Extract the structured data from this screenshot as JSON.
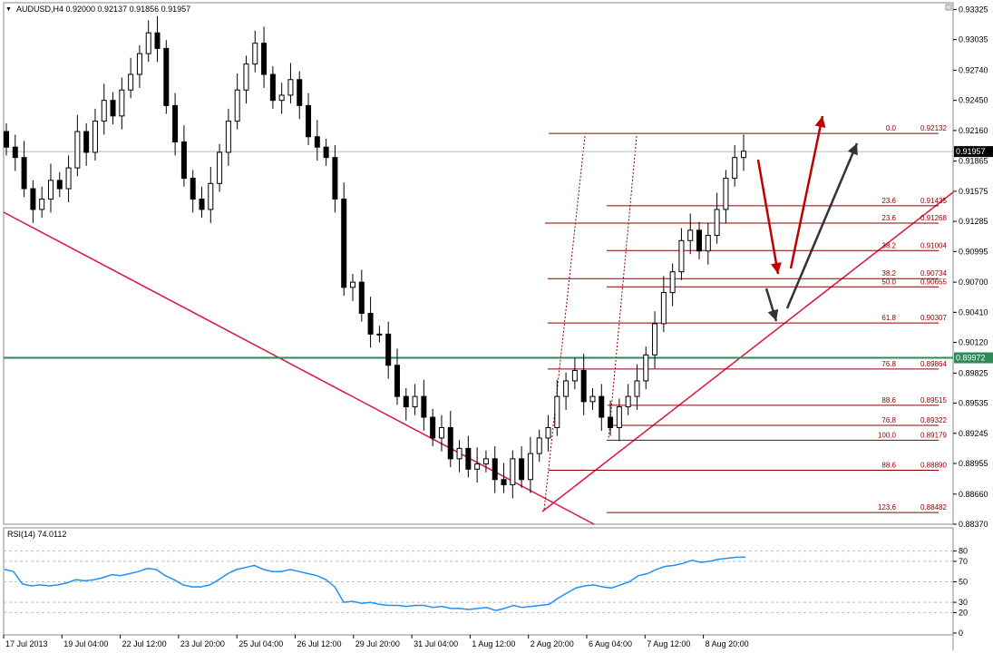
{
  "header": {
    "symbol_line": "AUDUSD,H4  0.92000 0.92137 0.91856 0.91957",
    "caret": "▼"
  },
  "rsi_header": "RSI(14) 74.0112",
  "price_axis": {
    "min": 0.8837,
    "max": 0.9339,
    "ticks": [
      "0.93325",
      "0.93035",
      "0.92740",
      "0.92450",
      "0.92160",
      "0.91865",
      "0.91575",
      "0.91285",
      "0.90995",
      "0.90700",
      "0.90410",
      "0.90120",
      "0.89825",
      "0.89535",
      "0.89245",
      "0.88955",
      "0.88660",
      "0.88370"
    ],
    "current_price": "0.91957",
    "level_price": "0.89972"
  },
  "rsi_axis": {
    "ticks": [
      "80",
      "70",
      "50",
      "30",
      "20",
      "0"
    ],
    "guides": [
      80,
      70,
      50,
      30,
      20
    ]
  },
  "time_axis": [
    "17 Jul 2013",
    "19 Jul 04:00",
    "22 Jul 12:00",
    "23 Jul 20:00",
    "25 Jul 04:00",
    "26 Jul 12:00",
    "29 Jul 20:00",
    "31 Jul 04:00",
    "1 Aug 12:00",
    "2 Aug 20:00",
    "6 Aug 04:00",
    "7 Aug 12:00",
    "8 Aug 20:00"
  ],
  "fib_levels": [
    {
      "ratio": "0.0",
      "price": "0.92132"
    },
    {
      "ratio": "23.6",
      "price": "0.91435"
    },
    {
      "ratio": "23.6",
      "price": "0.91268"
    },
    {
      "ratio": "38.2",
      "price": "0.91004"
    },
    {
      "ratio": "38.2",
      "price": "0.90734"
    },
    {
      "ratio": "50.0",
      "price": "0.90655"
    },
    {
      "ratio": "61.8",
      "price": "0.90307"
    },
    {
      "ratio": "76.8",
      "price": "0.89864"
    },
    {
      "ratio": "88.6",
      "price": "0.89515"
    },
    {
      "ratio": "76.8",
      "price": "0.89322"
    },
    {
      "ratio": "100.0",
      "price": "0.89179"
    },
    {
      "ratio": "88.6",
      "price": "0.88890"
    },
    {
      "ratio": "123.6",
      "price": "0.88482"
    }
  ],
  "colors": {
    "fib": "#8b0000",
    "trend": "#dc143c",
    "level": "#2e8b57",
    "rsi": "#1e90ff",
    "arrow_red": "#c00000",
    "arrow_dark": "#333333",
    "bull_body": "#ffffff",
    "bear_body": "#000000"
  },
  "chart_data": {
    "type": "candlestick",
    "symbol": "AUDUSD",
    "timeframe": "H4",
    "ohlc_last": {
      "open": 0.92,
      "high": 0.92137,
      "low": 0.91856,
      "close": 0.91957
    },
    "price_range": [
      0.8837,
      0.9339
    ],
    "candle_closes_approx": [
      0.92,
      0.919,
      0.916,
      0.914,
      0.915,
      0.9168,
      0.916,
      0.918,
      0.9215,
      0.9195,
      0.9225,
      0.9245,
      0.923,
      0.9255,
      0.927,
      0.929,
      0.931,
      0.9295,
      0.924,
      0.9205,
      0.917,
      0.915,
      0.914,
      0.9165,
      0.9195,
      0.9225,
      0.9255,
      0.928,
      0.93,
      0.927,
      0.9245,
      0.925,
      0.9265,
      0.924,
      0.921,
      0.92,
      0.919,
      0.915,
      0.9065,
      0.907,
      0.904,
      0.902,
      0.902,
      0.899,
      0.896,
      0.895,
      0.896,
      0.894,
      0.892,
      0.893,
      0.89,
      0.891,
      0.889,
      0.8895,
      0.89,
      0.888,
      0.8875,
      0.89,
      0.888,
      0.8905,
      0.892,
      0.893,
      0.896,
      0.8975,
      0.8985,
      0.8955,
      0.896,
      0.894,
      0.893,
      0.895,
      0.896,
      0.8975,
      0.9,
      0.903,
      0.906,
      0.908,
      0.911,
      0.912,
      0.91,
      0.9115,
      0.914,
      0.917,
      0.919,
      0.9196
    ],
    "fibonacci": [
      {
        "ratio": 0.0,
        "price": 0.92132
      },
      {
        "ratio": 23.6,
        "price": 0.91435
      },
      {
        "ratio": 23.6,
        "price": 0.91268
      },
      {
        "ratio": 38.2,
        "price": 0.91004
      },
      {
        "ratio": 38.2,
        "price": 0.90734
      },
      {
        "ratio": 50.0,
        "price": 0.90655
      },
      {
        "ratio": 61.8,
        "price": 0.90307
      },
      {
        "ratio": 76.8,
        "price": 0.89864
      },
      {
        "ratio": 88.6,
        "price": 0.89515
      },
      {
        "ratio": 76.8,
        "price": 0.89322
      },
      {
        "ratio": 100.0,
        "price": 0.89179
      },
      {
        "ratio": 88.6,
        "price": 0.8889
      },
      {
        "ratio": 123.6,
        "price": 0.88482
      }
    ],
    "horizontal_level": 0.89972,
    "rsi": {
      "period": 14,
      "last": 74.0112,
      "range": [
        0,
        100
      ],
      "values": [
        62,
        60,
        48,
        46,
        47,
        46,
        47,
        49,
        52,
        51,
        52,
        54,
        57,
        56,
        58,
        60,
        63,
        62,
        56,
        52,
        47,
        45,
        45,
        47,
        52,
        58,
        62,
        64,
        66,
        62,
        60,
        60,
        62,
        60,
        58,
        56,
        52,
        45,
        30,
        31,
        29,
        30,
        28,
        27,
        27,
        26,
        27,
        27,
        25,
        26,
        24,
        24,
        23,
        24,
        25,
        22,
        24,
        27,
        25,
        26,
        27,
        28,
        34,
        39,
        44,
        46,
        47,
        45,
        44,
        47,
        50,
        56,
        58,
        62,
        65,
        66,
        68,
        71,
        69,
        70,
        72,
        73,
        74,
        74.0
      ]
    }
  }
}
